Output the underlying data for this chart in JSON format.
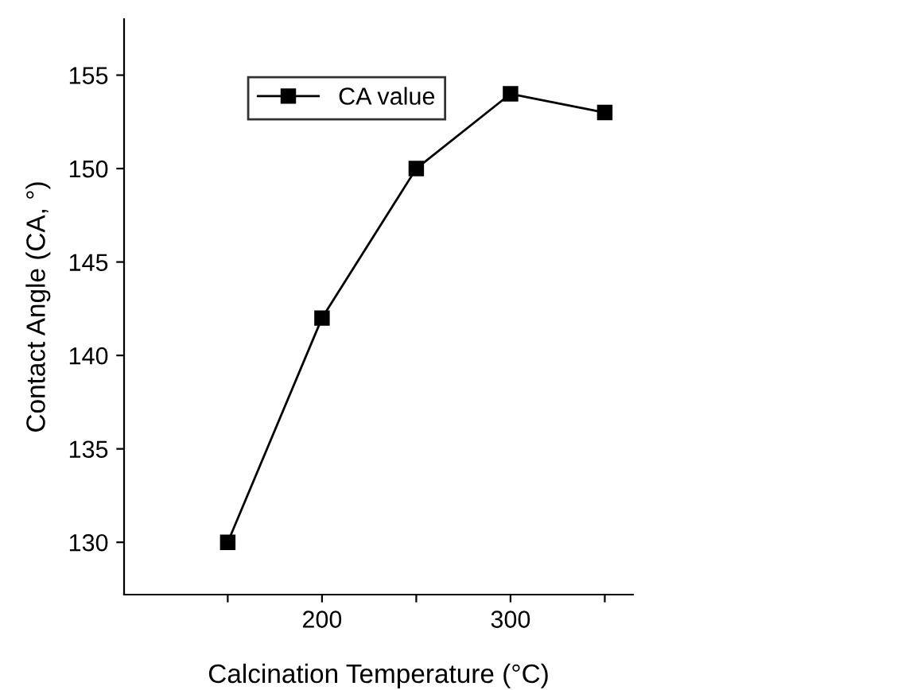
{
  "chart_data": {
    "type": "line",
    "xlabel": "Calcination Temperature (°C)",
    "ylabel": "Contact Angle (CA, °)",
    "x": [
      150,
      200,
      250,
      300,
      350
    ],
    "series": [
      {
        "name": "CA value",
        "color": "#000000",
        "values": [
          130,
          142,
          150,
          154,
          153
        ]
      }
    ],
    "xlim": [
      95,
      365
    ],
    "ylim": [
      127.2,
      158
    ],
    "xticks": [
      {
        "value": 150,
        "label": null
      },
      200,
      {
        "value": 250,
        "label": null
      },
      300,
      {
        "value": 350,
        "label": null
      }
    ],
    "yticks": [
      130,
      135,
      140,
      145,
      150,
      155
    ],
    "marker": "square",
    "line_style": "solid",
    "legend": "top left",
    "grid": false
  }
}
